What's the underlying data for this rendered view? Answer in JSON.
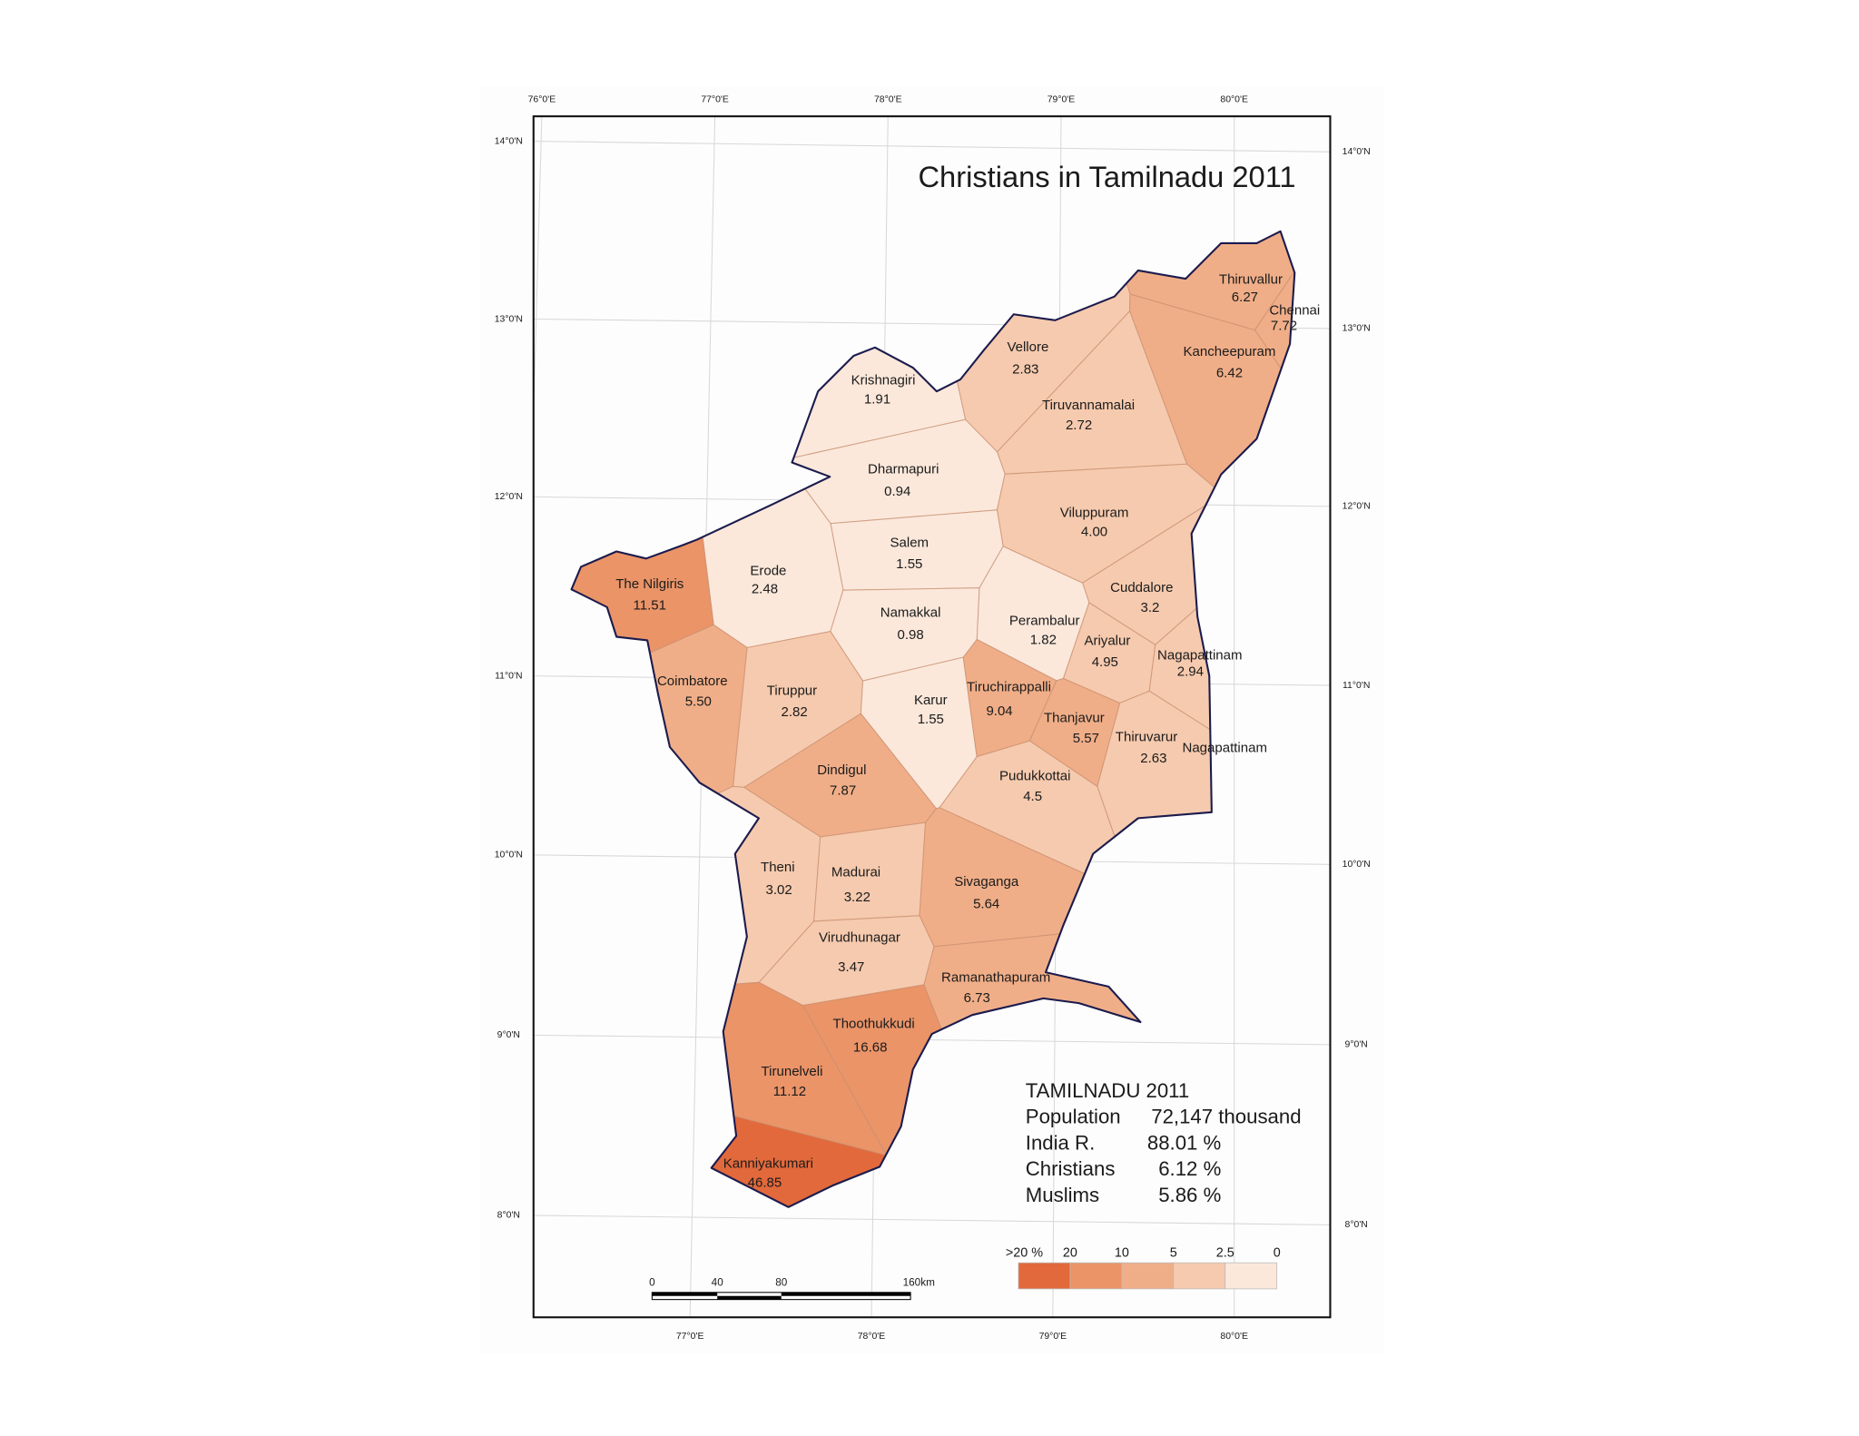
{
  "map": {
    "title": "Christians in Tamilnadu 2011",
    "graticule": {
      "top": [
        "76°0'E",
        "77°0'E",
        "78°0'E",
        "79°0'E",
        "80°0'E"
      ],
      "bottom": [
        "77°0'E",
        "78°0'E",
        "79°0'E",
        "80°0'E"
      ],
      "left": [
        "14°0'N",
        "13°0'N",
        "12°0'N",
        "11°0'N",
        "10°0'N",
        "9°0'N",
        "8°0'N"
      ],
      "right": [
        "14°0'N",
        "13°0'N",
        "12°0'N",
        "11°0'N",
        "10°0'N",
        "9°0'N",
        "8°0'N"
      ]
    },
    "districts": [
      {
        "name": "Thiruvallur",
        "value": 6.27
      },
      {
        "name": "Chennai",
        "value": 7.72
      },
      {
        "name": "Vellore",
        "value": 2.83
      },
      {
        "name": "Kancheepuram",
        "value": 6.42
      },
      {
        "name": "Krishnagiri",
        "value": 1.91
      },
      {
        "name": "Tiruvannamalai",
        "value": 2.72
      },
      {
        "name": "Dharmapuri",
        "value": 0.94
      },
      {
        "name": "Viluppuram",
        "value": 4,
        "value_label": "4.00"
      },
      {
        "name": "Salem",
        "value": 1.55
      },
      {
        "name": "Erode",
        "value": 2.48
      },
      {
        "name": "The Nilgiris",
        "value": 11.51
      },
      {
        "name": "Cuddalore",
        "value": 3.2
      },
      {
        "name": "Namakkal",
        "value": 0.98
      },
      {
        "name": "Perambalur",
        "value": 1.82
      },
      {
        "name": "Ariyalur",
        "value": 4.95
      },
      {
        "name": "Nagapattinam",
        "value": 2.94
      },
      {
        "name": "Coimbatore",
        "value": 5.5,
        "value_label": "5.50"
      },
      {
        "name": "Tiruppur",
        "value": 2.82
      },
      {
        "name": "Karur",
        "value": 1.55
      },
      {
        "name": "Tiruchirappalli",
        "value": 9.04
      },
      {
        "name": "Thanjavur",
        "value": 5.57
      },
      {
        "name": "Thiruvarur",
        "value": 2.63
      },
      {
        "name": "Nagapattinam"
      },
      {
        "name": "Dindigul",
        "value": 7.87
      },
      {
        "name": "Pudukkottai",
        "value": 4.5
      },
      {
        "name": "Theni",
        "value": 3.02
      },
      {
        "name": "Madurai",
        "value": 3.22
      },
      {
        "name": "Sivaganga",
        "value": 5.64
      },
      {
        "name": "Virudhunagar",
        "value": 3.47
      },
      {
        "name": "Ramanathapuram",
        "value": 6.73
      },
      {
        "name": "Thoothukkudi",
        "value": 16.68
      },
      {
        "name": "Tirunelveli",
        "value": 11.12
      },
      {
        "name": "Kanniyakumari",
        "value": 46.85
      }
    ],
    "summary": {
      "title": "TAMILNADU 2011",
      "rows": [
        [
          "Population",
          "72,147 thousand"
        ],
        [
          "India R.",
          "88.01 %"
        ],
        [
          "Christians",
          "6.12 %"
        ],
        [
          "Muslims",
          "5.86 %"
        ]
      ]
    },
    "legend": {
      "edge_labels": [
        ">20 %",
        20,
        10,
        5,
        2.5,
        0
      ],
      "colors": [
        "#e2693b",
        "#ea9468",
        "#f0ae88",
        "#f6caae",
        "#fbe8db"
      ]
    },
    "scale_bar": {
      "labels": [
        0,
        40,
        80,
        "160km"
      ]
    }
  }
}
